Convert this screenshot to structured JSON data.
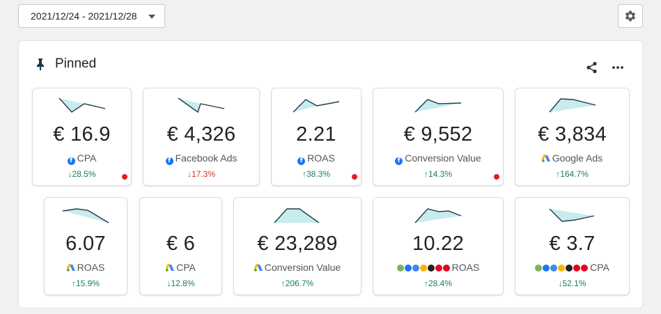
{
  "date_range": "2021/12/24 - 2021/12/28",
  "panel": {
    "title": "Pinned"
  },
  "colors": {
    "up": "#1a7f51",
    "down": "#d93025",
    "spark_fill": "#c8ecec",
    "spark_line": "#1f3a4a",
    "alert_dot": "#e02020"
  },
  "cards": [
    {
      "value": "€ 16.9",
      "label": "CPA",
      "icon": "facebook-icon",
      "change": "↓28.5%",
      "alert": true
    },
    {
      "value": "€ 4,326",
      "label": "Facebook Ads",
      "icon": "facebook-icon",
      "change": "↓17.3%",
      "alert": false
    },
    {
      "value": "2.21",
      "label": "ROAS",
      "icon": "facebook-icon",
      "change": "↑38.3%",
      "alert": true
    },
    {
      "value": "€ 9,552",
      "label": "Conversion Value",
      "icon": "facebook-icon",
      "change": "↑14.3%",
      "alert": true
    },
    {
      "value": "€ 3,834",
      "label": "Google Ads",
      "icon": "google-ads-icon",
      "change": "↑164.7%",
      "alert": false
    },
    {
      "value": "6.07",
      "label": "ROAS",
      "icon": "google-ads-icon",
      "change": "↑15.9%",
      "alert": false
    },
    {
      "value": "€ 6",
      "label": "CPA",
      "icon": "google-ads-icon",
      "change": "↓12.8%",
      "alert": false
    },
    {
      "value": "€ 23,289",
      "label": "Conversion Value",
      "icon": "google-ads-icon",
      "change": "↑206.7%",
      "alert": false
    },
    {
      "value": "10.22",
      "label": "ROAS",
      "icon": "multi-channel-icons",
      "change": "↑28.4%",
      "alert": false
    },
    {
      "value": "€ 3.7",
      "label": "CPA",
      "icon": "multi-channel-icons",
      "change": "↓52.1%",
      "alert": false
    }
  ]
}
